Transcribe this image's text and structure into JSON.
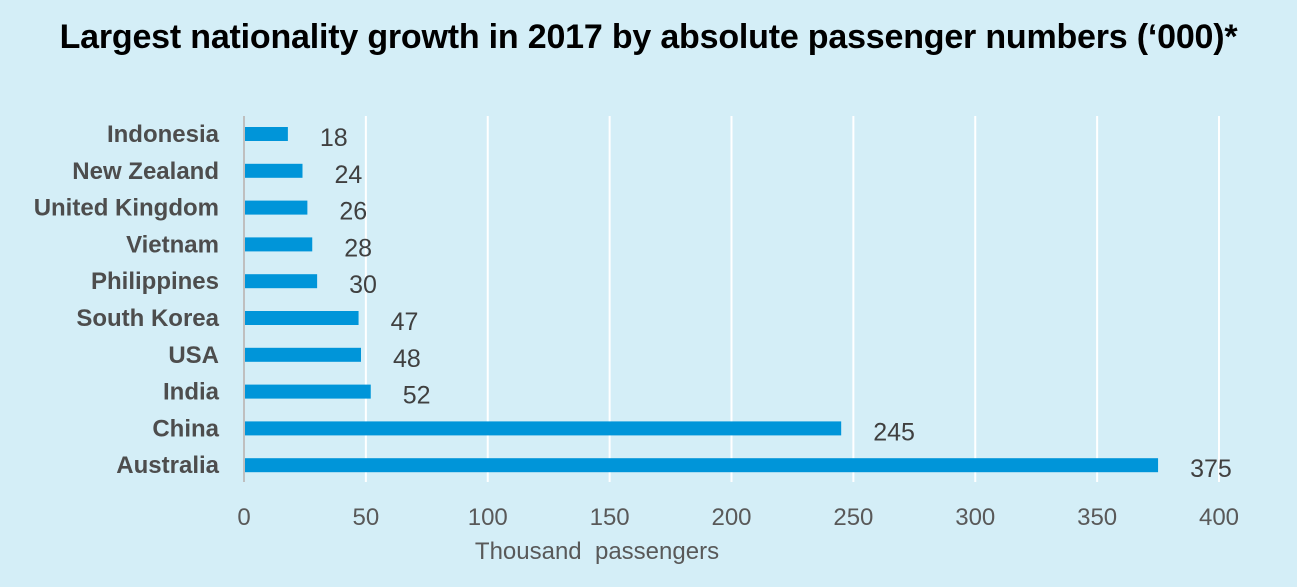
{
  "chart_data": {
    "type": "bar",
    "orientation": "horizontal",
    "title": "Largest nationality growth in 2017 by absolute passenger numbers (‘000)*",
    "categories": [
      "Indonesia",
      "New Zealand",
      "United Kingdom",
      "Vietnam",
      "Philippines",
      "South Korea",
      "USA",
      "India",
      "China",
      "Australia"
    ],
    "values": [
      18,
      24,
      26,
      28,
      30,
      47,
      48,
      52,
      245,
      375
    ],
    "value_labels": [
      "18",
      "24",
      "26",
      "28",
      "30",
      "47",
      "48",
      "52",
      "245",
      "375"
    ],
    "xlabel": "Thousand  passengers",
    "ylabel": "",
    "xlim": [
      0,
      400
    ],
    "xticks": [
      0,
      50,
      100,
      150,
      200,
      250,
      300,
      350,
      400
    ],
    "xtick_labels": [
      "0",
      "50",
      "100",
      "150",
      "200",
      "250",
      "300",
      "350",
      "400"
    ],
    "grid": true,
    "legend": "none",
    "colors": {
      "bar": "#0095d9",
      "background": "#d4eef7",
      "gridline": "#ffffff",
      "axis": "#bfbfbf"
    }
  }
}
